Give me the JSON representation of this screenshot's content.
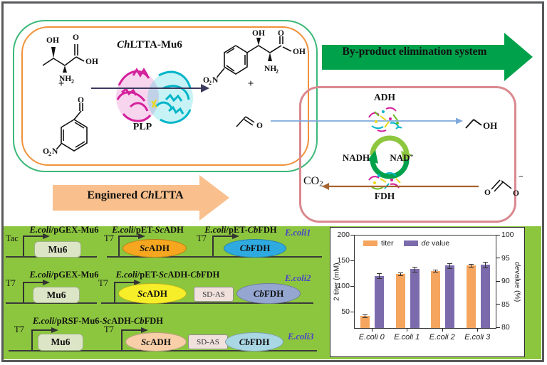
{
  "scheme": {
    "enzyme_title": [
      {
        "t": "Ch",
        "i": 1
      },
      {
        "t": "LTTA-Mu6"
      }
    ],
    "plp": "PLP",
    "banner": "By-product elimination system",
    "engineered": [
      {
        "t": "Enginered "
      },
      {
        "t": "Ch",
        "i": 1
      },
      {
        "t": "LTTA"
      }
    ],
    "adh": "ADH",
    "fdh": "FDH",
    "nadh": "NADH",
    "nad": [
      {
        "t": "NAD"
      },
      {
        "t": "+",
        "sup": 1
      }
    ],
    "co2": [
      {
        "t": "CO"
      },
      {
        "t": "2",
        "sub": 1
      }
    ],
    "plus": "+",
    "atoms": {
      "oh": "OH",
      "o": "O",
      "nh": "NH",
      "n": "N",
      "two": "2",
      "minus": "−"
    }
  },
  "constructs": {
    "row1": {
      "c1_label": [
        {
          "t": "E.coli",
          "i": 1
        },
        {
          "t": "/pGEX-Mu6"
        }
      ],
      "c1_promoter": "Tac",
      "c1_gene": "Mu6",
      "c2_label": [
        {
          "t": "E.coli",
          "i": 1
        },
        {
          "t": "/pET-"
        },
        {
          "t": "Sc",
          "i": 1
        },
        {
          "t": "ADH"
        }
      ],
      "c2_promoter": "T7",
      "c2_gene": [
        {
          "t": "Sc",
          "i": 1
        },
        {
          "t": "ADH"
        }
      ],
      "c3_label": [
        {
          "t": "E.coli",
          "i": 1
        },
        {
          "t": "/pET-"
        },
        {
          "t": "Cb",
          "i": 1
        },
        {
          "t": "FDH"
        }
      ],
      "c3_promoter": "T7",
      "c3_gene": [
        {
          "t": "Cb",
          "i": 1
        },
        {
          "t": "FDH"
        }
      ],
      "strain": [
        {
          "t": "E.coli",
          "i": 1
        },
        {
          "t": "1"
        }
      ]
    },
    "row2": {
      "c1_label": [
        {
          "t": "E.coli",
          "i": 1
        },
        {
          "t": "/pGEX-Mu6"
        }
      ],
      "c1_promoter": "T7",
      "c1_gene": "Mu6",
      "c2_label": [
        {
          "t": "E.coli",
          "i": 1
        },
        {
          "t": "/pET-"
        },
        {
          "t": "Sc",
          "i": 1
        },
        {
          "t": "ADH-"
        },
        {
          "t": "Cb",
          "i": 1
        },
        {
          "t": "FDH"
        }
      ],
      "c2_promoter": "T7",
      "c2_gene1": [
        {
          "t": "Sc",
          "i": 1
        },
        {
          "t": "ADH"
        }
      ],
      "linker": "SD-AS",
      "c2_gene2": [
        {
          "t": "Cb",
          "i": 1
        },
        {
          "t": "FDH"
        }
      ],
      "strain": [
        {
          "t": "E.coli",
          "i": 1
        },
        {
          "t": "2"
        }
      ]
    },
    "row3": {
      "label": [
        {
          "t": "E.coli",
          "i": 1
        },
        {
          "t": "/pRSF-Mu6-"
        },
        {
          "t": "Sc",
          "i": 1
        },
        {
          "t": "ADH-"
        },
        {
          "t": "Cb",
          "i": 1
        },
        {
          "t": "FDH"
        }
      ],
      "promoter1": "T7",
      "gene1": "Mu6",
      "promoter2": "T7",
      "gene2": [
        {
          "t": "Sc",
          "i": 1
        },
        {
          "t": "ADH"
        }
      ],
      "linker": "SD-AS",
      "gene3": [
        {
          "t": "Cb",
          "i": 1
        },
        {
          "t": "FDH"
        }
      ],
      "strain": [
        {
          "t": "E.coli",
          "i": 1
        },
        {
          "t": "3"
        }
      ]
    }
  },
  "chart_data": {
    "type": "bar",
    "categories": [
      "E.coli 0",
      "E.coli 1",
      "E.coli 2",
      "E.coli 3"
    ],
    "series": [
      {
        "name": "titer",
        "axis": "left",
        "color": "#F5A55E",
        "values": [
          44,
          125,
          131,
          142
        ],
        "errors": [
          3,
          3,
          2,
          3
        ]
      },
      {
        "name": "de value",
        "axis": "right",
        "color": "#7C6BAC",
        "values": [
          91.3,
          92.7,
          93.5,
          93.7
        ],
        "errors": [
          0.6,
          0.5,
          0.5,
          0.6
        ]
      }
    ],
    "left_axis": {
      "label": "2 titer (mM)",
      "min": 20,
      "max": 200,
      "ticks": [
        50,
        100,
        150,
        200
      ]
    },
    "right_axis": {
      "label": "de value (%)",
      "label_rich": [
        {
          "t": "de",
          "i": 1
        },
        {
          "t": " value (%)"
        }
      ],
      "min": 80,
      "max": 100,
      "ticks": [
        80,
        85,
        90,
        95,
        100
      ]
    },
    "legend_rich": [
      [
        {
          "t": "titer"
        }
      ],
      [
        {
          "t": "de",
          "i": 1
        },
        {
          "t": " value"
        }
      ]
    ],
    "legend_position": "top-left",
    "grid": false
  },
  "colors": {
    "green_frame": "#3CB878",
    "orange_frame": "#F0913A",
    "pink_frame": "#D9898F",
    "banner_green": "#00A14B",
    "engineered_orange": "#F9C08D",
    "panel_green": "#8CC63F",
    "bar_orange": "#F5A55E",
    "bar_purple": "#7C6BAC",
    "strain_label": "#4A41C9",
    "blue_arrow": "#7FA8DC",
    "brown_arrow": "#A6622F",
    "cycle_light": "#8DC63F",
    "cycle_dark": "#00A14B",
    "protein_magenta": "#D4219C",
    "protein_cyan": "#00B5C8"
  }
}
